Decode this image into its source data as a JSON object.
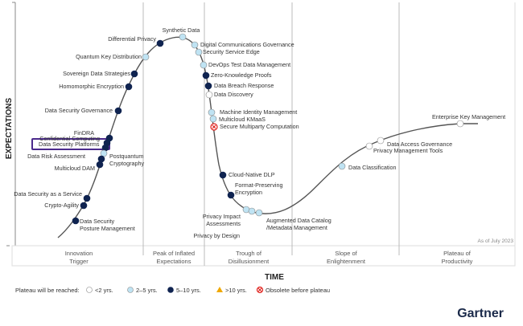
{
  "axes": {
    "y_label": "EXPECTATIONS",
    "x_label": "TIME"
  },
  "as_of": "As of July 2023",
  "phases": [
    [
      "Innovation",
      "Trigger"
    ],
    [
      "Peak of Inflated",
      "Expectations"
    ],
    [
      "Trough of",
      "Disillusionment"
    ],
    [
      "Slope of",
      "Enlightenment"
    ],
    [
      "Plateau of",
      "Productivity"
    ]
  ],
  "legend": {
    "title": "Plateau will be reached:",
    "items": [
      {
        "key": "lt2",
        "label": "<2 yrs."
      },
      {
        "key": "2to5",
        "label": "2–5 yrs."
      },
      {
        "key": "5to10",
        "label": "5–10 yrs."
      },
      {
        "key": "gt10",
        "label": ">10 yrs."
      },
      {
        "key": "obsolete",
        "label": "Obsolete before plateau"
      }
    ]
  },
  "colors": {
    "lt2": "#ffffff",
    "2to5": "#bfe3f3",
    "5to10": "#0f2350",
    "gt10": "#f0a800",
    "obsolete": "#e0201b",
    "highlight": "#4b2a8c",
    "curve": "#555555"
  },
  "brand": "Gartner",
  "highlighted": "Data Security Platforms",
  "technologies": [
    {
      "lines": [
        "Synthetic Data"
      ],
      "cat": "2to5"
    },
    {
      "lines": [
        "Differential Privacy"
      ],
      "cat": "5to10"
    },
    {
      "lines": [
        "Quantum Key Distribution"
      ],
      "cat": "2to5"
    },
    {
      "lines": [
        "Sovereign Data Strategies"
      ],
      "cat": "5to10"
    },
    {
      "lines": [
        "Homomorphic Encryption"
      ],
      "cat": "5to10"
    },
    {
      "lines": [
        "Data Security Governance"
      ],
      "cat": "5to10"
    },
    {
      "lines": [
        "FinDRA"
      ],
      "cat": "5to10"
    },
    {
      "lines": [
        "Confidential Computing"
      ],
      "cat": "5to10"
    },
    {
      "lines": [
        "Data Security Platforms"
      ],
      "cat": "5to10"
    },
    {
      "lines": [
        "Postquantum",
        "Cryptography"
      ],
      "cat": "2to5"
    },
    {
      "lines": [
        "Data Risk Assessment"
      ],
      "cat": "5to10"
    },
    {
      "lines": [
        "Multicloud DAM"
      ],
      "cat": "5to10"
    },
    {
      "lines": [
        "Data Security as a Service"
      ],
      "cat": "5to10"
    },
    {
      "lines": [
        "Crypto-Agility"
      ],
      "cat": "5to10"
    },
    {
      "lines": [
        "Data Security",
        "Posture Management"
      ],
      "cat": "5to10"
    },
    {
      "lines": [
        "Digital Communications Governance"
      ],
      "cat": "2to5"
    },
    {
      "lines": [
        "Security Service Edge"
      ],
      "cat": "2to5"
    },
    {
      "lines": [
        "DevOps Test Data Management"
      ],
      "cat": "2to5"
    },
    {
      "lines": [
        "Zero-Knowledge Proofs"
      ],
      "cat": "5to10"
    },
    {
      "lines": [
        "Data Breach Response"
      ],
      "cat": "5to10"
    },
    {
      "lines": [
        "Data Discovery"
      ],
      "cat": "lt2"
    },
    {
      "lines": [
        "Machine Identity Management"
      ],
      "cat": "2to5"
    },
    {
      "lines": [
        "Multicloud KMaaS"
      ],
      "cat": "2to5"
    },
    {
      "lines": [
        "Secure Multiparty Computation"
      ],
      "cat": "obsolete"
    },
    {
      "lines": [
        "Cloud-Native DLP"
      ],
      "cat": "5to10"
    },
    {
      "lines": [
        "Format-Preserving",
        "Encryption"
      ],
      "cat": "5to10"
    },
    {
      "lines": [
        "Privacy Impact",
        "Assessments"
      ],
      "cat": "2to5"
    },
    {
      "lines": [
        "Privacy by Design"
      ],
      "cat": "2to5"
    },
    {
      "lines": [
        "Augmented Data Catalog",
        "/Metadata Management"
      ],
      "cat": "2to5"
    },
    {
      "lines": [
        "Data Classification"
      ],
      "cat": "2to5"
    },
    {
      "lines": [
        "Privacy Management Tools"
      ],
      "cat": "lt2"
    },
    {
      "lines": [
        "Data Access Governance"
      ],
      "cat": "lt2"
    },
    {
      "lines": [
        "Enterprise Key Management"
      ],
      "cat": "lt2"
    }
  ]
}
